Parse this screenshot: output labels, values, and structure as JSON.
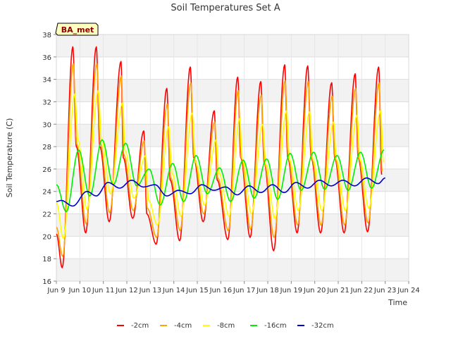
{
  "chart_data": {
    "type": "line",
    "title": "Soil Temperatures Set A",
    "xlabel": "Time",
    "ylabel": "Soil Temperature (C)",
    "site_label": "BA_met",
    "xlim": [
      9.0,
      24.0
    ],
    "ylim": [
      16,
      38
    ],
    "x_ticks": [
      9,
      10,
      11,
      12,
      13,
      14,
      15,
      16,
      17,
      18,
      19,
      20,
      21,
      22,
      23,
      24
    ],
    "x_tick_labels": [
      "Jun 9",
      "Jun 10",
      "Jun 11",
      "Jun 12",
      "Jun 13",
      "Jun 14",
      "Jun 15",
      "Jun 16",
      "Jun 17",
      "Jun 18",
      "Jun 19",
      "Jun 20",
      "Jun 21",
      "Jun 22",
      "Jun 23",
      "Jun 24"
    ],
    "y_ticks": [
      16,
      18,
      20,
      22,
      24,
      26,
      28,
      30,
      32,
      34,
      36,
      38
    ],
    "y_tick_labels": [
      "16",
      "18",
      "20",
      "22",
      "24",
      "26",
      "28",
      "30",
      "32",
      "34",
      "36",
      "38"
    ],
    "grid": true,
    "banded_background": true,
    "legend_position": "bottom",
    "x_unit": "day of June",
    "series": [
      {
        "name": "-2cm",
        "color": "#ff0000",
        "x": [
          9.0,
          9.25,
          9.7,
          9.85,
          10.25,
          10.7,
          10.85,
          11.25,
          11.75,
          11.85,
          12.25,
          12.72,
          12.85,
          13.25,
          13.7,
          13.85,
          14.25,
          14.7,
          14.85,
          15.25,
          15.72,
          15.85,
          16.3,
          16.72,
          16.85,
          17.25,
          17.7,
          17.85,
          18.25,
          18.72,
          18.85,
          19.25,
          19.7,
          19.85,
          20.25,
          20.72,
          20.85,
          21.25,
          21.72,
          21.85,
          22.25,
          22.72,
          22.85
        ],
        "y": [
          20.2,
          17.2,
          36.9,
          28,
          20.3,
          36.9,
          28,
          21.3,
          35.6,
          27,
          21.6,
          29.4,
          22,
          19.3,
          33.2,
          25,
          19.6,
          35.1,
          27,
          21.3,
          31.2,
          25,
          19.7,
          34.2,
          27,
          19.9,
          33.8,
          26.5,
          18.7,
          35.3,
          27,
          20.3,
          35.2,
          27,
          20.3,
          33.7,
          27,
          20.3,
          34.5,
          27,
          20.4,
          35.1,
          25.5
        ]
      },
      {
        "name": "-4cm",
        "color": "#ffa500",
        "x": [
          9.0,
          9.27,
          9.72,
          9.87,
          10.27,
          10.72,
          10.87,
          11.27,
          11.77,
          11.87,
          12.27,
          12.74,
          12.87,
          13.27,
          13.72,
          13.87,
          14.27,
          14.72,
          14.87,
          15.27,
          15.74,
          15.87,
          16.32,
          16.74,
          16.87,
          17.27,
          17.72,
          17.87,
          18.27,
          18.74,
          18.87,
          19.27,
          19.72,
          19.87,
          20.27,
          20.74,
          20.87,
          21.27,
          21.74,
          21.87,
          22.27,
          22.74,
          22.87
        ],
        "y": [
          20.8,
          18.2,
          35.4,
          28.2,
          21.1,
          35.4,
          28.3,
          22.1,
          34.3,
          27.3,
          22.3,
          28.5,
          22.5,
          19.9,
          31.8,
          25.2,
          20.5,
          33.7,
          27,
          22,
          30.2,
          25.2,
          20.5,
          33,
          27,
          20.6,
          32.6,
          26.4,
          19.9,
          33.9,
          27,
          21,
          33.8,
          27,
          21,
          32.5,
          27,
          21,
          33.2,
          27,
          21.2,
          33.7,
          25.8
        ]
      },
      {
        "name": "-8cm",
        "color": "#ffff00",
        "x": [
          9.0,
          9.3,
          9.78,
          9.93,
          10.3,
          10.78,
          10.93,
          11.3,
          11.82,
          11.93,
          12.3,
          12.8,
          12.93,
          13.3,
          13.78,
          13.93,
          14.3,
          14.78,
          14.93,
          15.3,
          15.8,
          15.93,
          16.35,
          16.8,
          16.93,
          17.3,
          17.78,
          17.93,
          18.3,
          18.8,
          18.93,
          19.3,
          19.78,
          19.93,
          20.3,
          20.8,
          20.93,
          21.3,
          21.8,
          21.93,
          22.3,
          22.8,
          22.93
        ],
        "y": [
          23,
          19.8,
          32.7,
          28.5,
          22.4,
          33,
          28.6,
          23.8,
          31.9,
          27.6,
          23.4,
          27.2,
          23.2,
          21,
          29.8,
          25.6,
          21.8,
          31,
          26.6,
          22.8,
          28.6,
          25.6,
          21.8,
          30.5,
          26.8,
          22,
          30,
          26.4,
          21.6,
          31.2,
          26.8,
          22.3,
          31.1,
          26.8,
          22.3,
          30.2,
          26.8,
          22.3,
          30.8,
          26.8,
          22.5,
          31.2,
          26.6
        ]
      },
      {
        "name": "-16cm",
        "color": "#00ee00",
        "x": [
          9.0,
          9.42,
          9.95,
          10.42,
          10.95,
          11.42,
          11.95,
          12.42,
          12.95,
          13.42,
          13.95,
          14.42,
          14.95,
          15.42,
          15.95,
          16.42,
          16.95,
          17.42,
          17.95,
          18.42,
          18.95,
          19.42,
          19.95,
          20.42,
          20.95,
          21.42,
          21.95,
          22.42,
          22.95
        ],
        "y": [
          24.6,
          22.2,
          27.7,
          23.6,
          28.6,
          24.6,
          28.3,
          24.5,
          26,
          22.8,
          26.5,
          23.1,
          27.2,
          23.8,
          26.1,
          23.1,
          26.8,
          23.4,
          26.9,
          23.3,
          27.4,
          24.1,
          27.5,
          24.2,
          27.2,
          24.1,
          27.5,
          24.3,
          27.7
        ]
      },
      {
        "name": "-32cm",
        "color": "#0000cc",
        "x": [
          9.0,
          9.2,
          9.7,
          10.3,
          10.7,
          11.2,
          11.7,
          12.2,
          12.7,
          13.2,
          13.7,
          14.2,
          14.7,
          15.2,
          15.7,
          16.2,
          16.7,
          17.2,
          17.7,
          18.2,
          18.7,
          19.2,
          19.7,
          20.2,
          20.7,
          21.2,
          21.7,
          22.2,
          22.7,
          23.0
        ],
        "y": [
          23.1,
          23.2,
          22.7,
          24,
          23.6,
          24.8,
          24.3,
          25,
          24.4,
          24.6,
          23.6,
          24.1,
          23.8,
          24.6,
          24.1,
          24.4,
          23.7,
          24.5,
          23.9,
          24.6,
          23.9,
          24.8,
          24.3,
          25,
          24.5,
          25,
          24.5,
          25.2,
          24.7,
          25.2
        ]
      }
    ]
  }
}
